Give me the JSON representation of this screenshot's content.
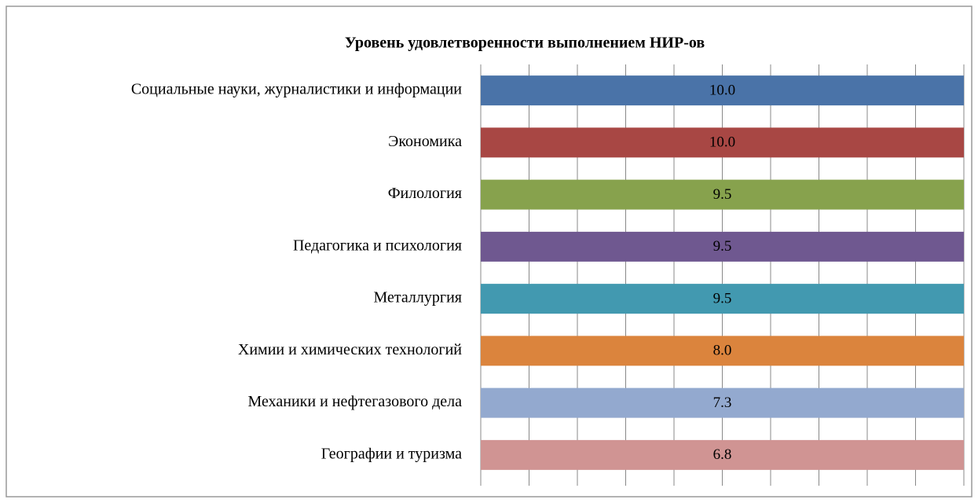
{
  "chart_data": {
    "type": "bar",
    "orientation": "horizontal",
    "stacked": "percent",
    "title": "Уровень удовлетворенности выполнением НИР-ов",
    "categories": [
      "Социальные науки, журналистики и информации",
      "Экономика",
      "Филология",
      "Педагогика и психология",
      "Металлургия",
      "Химии и химических технологий",
      "Механики и нефтегазового дела",
      "Географии и туризма"
    ],
    "values": [
      10.0,
      10.0,
      9.5,
      9.5,
      9.5,
      8.0,
      7.3,
      6.8
    ],
    "value_labels": [
      "10.0",
      "10.0",
      "9.5",
      "9.5",
      "9.5",
      "8.0",
      "7.3",
      "6.8"
    ],
    "colors": [
      "#4a73a8",
      "#a84744",
      "#87a24d",
      "#6f5890",
      "#4299b0",
      "#db843d",
      "#93a9cf",
      "#d09493"
    ],
    "xlim": [
      0,
      100
    ],
    "xticks": [
      0,
      10,
      20,
      30,
      40,
      50,
      60,
      70,
      80,
      90,
      100
    ],
    "show_tick_labels": false,
    "grid": true
  }
}
